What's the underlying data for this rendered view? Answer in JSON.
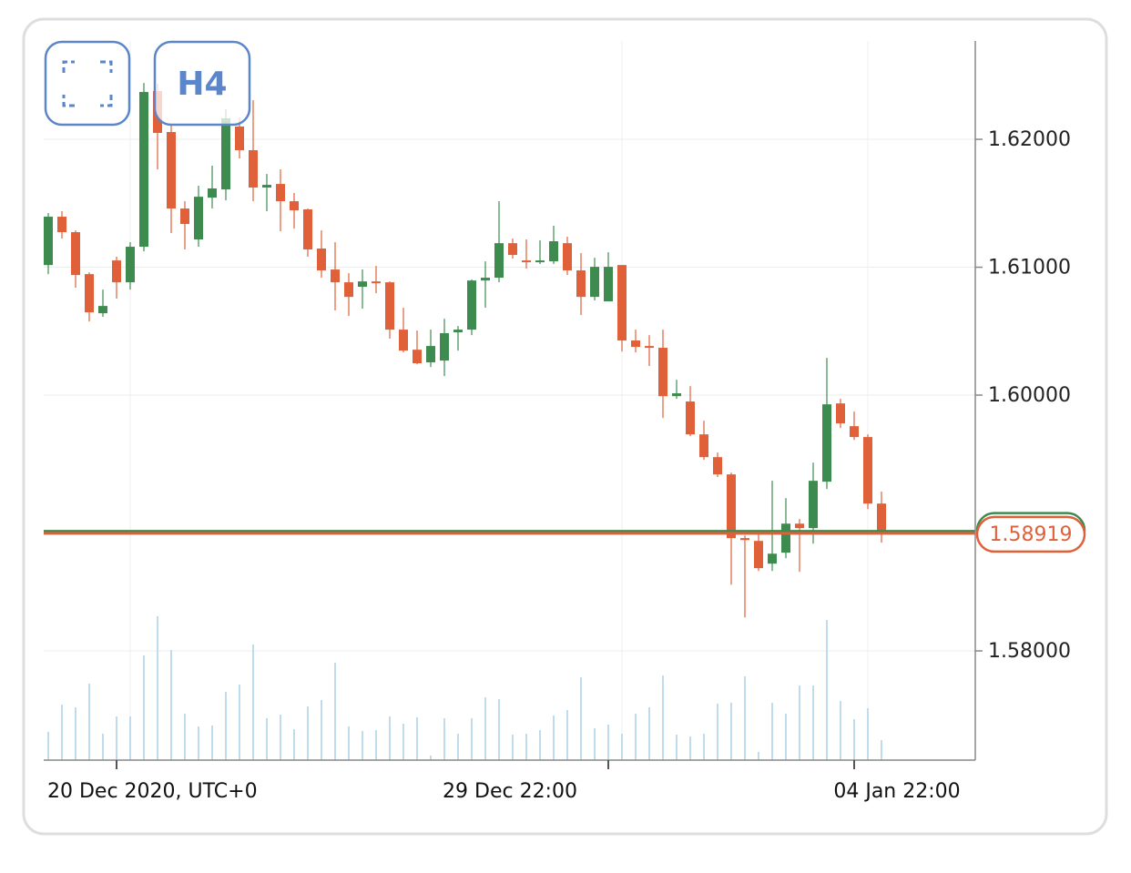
{
  "chart_data": {
    "type": "candlestick",
    "timeframe": "H4",
    "categories": [
      null,
      null,
      null,
      null,
      null,
      "20 Dec 2020, UTC+0",
      null,
      null,
      null,
      null,
      null,
      null,
      null,
      null,
      null,
      null,
      null,
      null,
      null,
      null,
      null,
      null,
      null,
      null,
      null,
      null,
      null,
      null,
      null,
      null,
      null,
      null,
      null,
      null,
      null,
      null,
      null,
      null,
      null,
      null,
      null,
      "29 Dec 22:00",
      null,
      null,
      null,
      null,
      null,
      null,
      null,
      null,
      null,
      null,
      null,
      null,
      null,
      null,
      null,
      null,
      null,
      "04 Jan 22:00",
      null,
      null
    ],
    "open": [
      1.61017,
      1.61395,
      1.61274,
      1.60946,
      1.6064,
      1.61053,
      1.60882,
      1.6116,
      1.62377,
      1.62057,
      1.61459,
      1.61217,
      1.61544,
      1.61608,
      1.621,
      1.61915,
      1.61623,
      1.61651,
      1.61516,
      1.61452,
      1.61146,
      1.60982,
      1.60882,
      1.60847,
      1.60889,
      1.60882,
      1.60512,
      1.60355,
      1.60256,
      1.6027,
      1.60491,
      1.60512,
      1.60896,
      1.60918,
      1.61188,
      1.61053,
      1.61039,
      1.61046,
      1.61188,
      1.60975,
      1.60768,
      1.60733,
      1.61017,
      1.60427,
      1.60384,
      1.6037,
      1.59992,
      1.5995,
      1.59693,
      1.59515,
      1.5938,
      1.58882,
      1.5886,
      1.58682,
      1.58768,
      1.58995,
      1.5896,
      1.59323,
      1.59935,
      1.59757,
      1.59672,
      1.59152
    ],
    "high": [
      1.61423,
      1.61438,
      1.61288,
      1.6096,
      1.60825,
      1.61082,
      1.61196,
      1.62441,
      1.62434,
      1.62114,
      1.61516,
      1.61637,
      1.61794,
      1.62235,
      1.62171,
      1.62306,
      1.61729,
      1.61765,
      1.6158,
      1.61459,
      1.61288,
      1.61196,
      1.60953,
      1.60982,
      1.6101,
      1.60889,
      1.60683,
      1.60505,
      1.60512,
      1.60597,
      1.6054,
      1.60904,
      1.61046,
      1.61516,
      1.61224,
      1.61217,
      1.6121,
      1.61324,
      1.61238,
      1.6111,
      1.61074,
      1.61117,
      1.61017,
      1.60512,
      1.60469,
      1.60512,
      1.6012,
      1.6007,
      1.598,
      1.59551,
      1.59394,
      1.58903,
      1.58917,
      1.5933,
      1.59195,
      1.59031,
      1.59472,
      1.60291,
      1.59971,
      1.59871,
      1.59693,
      1.59245
    ],
    "low": [
      1.60946,
      1.61224,
      1.6084,
      1.60576,
      1.60612,
      1.60754,
      1.60825,
      1.61124,
      1.61765,
      1.61267,
      1.61139,
      1.6116,
      1.61459,
      1.61523,
      1.6185,
      1.61516,
      1.61438,
      1.61281,
      1.61302,
      1.61082,
      1.60918,
      1.60662,
      1.60619,
      1.60676,
      1.60797,
      1.60441,
      1.60334,
      1.60241,
      1.6022,
      1.60149,
      1.60348,
      1.60469,
      1.60683,
      1.60882,
      1.61067,
      1.60989,
      1.61025,
      1.61025,
      1.60939,
      1.60626,
      1.6074,
      1.60733,
      1.60341,
      1.60334,
      1.60227,
      1.59821,
      1.59971,
      1.59679,
      1.59494,
      1.59359,
      1.58518,
      1.58262,
      1.58625,
      1.58625,
      1.58725,
      1.58618,
      1.58839,
      1.59266,
      1.59743,
      1.5965,
      1.59109,
      1.58846
    ],
    "close": [
      1.61395,
      1.61274,
      1.60939,
      1.60647,
      1.60697,
      1.60882,
      1.6116,
      1.6237,
      1.6205,
      1.61459,
      1.61338,
      1.61551,
      1.61616,
      1.62164,
      1.61915,
      1.61623,
      1.61644,
      1.61516,
      1.61445,
      1.61139,
      1.60975,
      1.60882,
      1.60768,
      1.60889,
      1.60875,
      1.60512,
      1.60348,
      1.60249,
      1.60384,
      1.60484,
      1.60512,
      1.60896,
      1.60918,
      1.61188,
      1.61096,
      1.61039,
      1.61053,
      1.61203,
      1.60975,
      1.60768,
      1.61003,
      1.61003,
      1.60427,
      1.60377,
      1.6037,
      1.59992,
      1.60014,
      1.59693,
      1.59515,
      1.5938,
      1.58882,
      1.58867,
      1.58647,
      1.5876,
      1.58995,
      1.5896,
      1.5933,
      1.59928,
      1.59779,
      1.59672,
      1.59152,
      1.58919
    ],
    "volume": [
      31,
      61,
      58,
      84,
      29,
      48,
      48,
      115,
      158,
      121,
      51,
      37,
      38,
      75,
      83,
      127,
      46,
      50,
      34,
      59,
      66,
      107,
      37,
      32,
      33,
      48,
      40,
      47,
      5,
      46,
      29,
      46,
      69,
      67,
      28,
      29,
      33,
      49,
      55,
      91,
      35,
      39,
      29,
      51,
      58,
      93,
      28,
      26,
      29,
      62,
      63,
      92,
      9,
      63,
      51,
      82,
      82,
      154,
      65,
      45,
      57,
      22
    ],
    "up_color": "#3d8b4f",
    "down_color": "#e0603a",
    "volume_color": "#bfdced",
    "ylim": [
      1.57146,
      1.62769
    ],
    "yticks": [
      {
        "value": 1.58,
        "label": "1.58000"
      },
      {
        "value": 1.6,
        "label": "1.60000"
      },
      {
        "value": 1.61,
        "label": "1.61000"
      },
      {
        "value": 1.62,
        "label": "1.62000"
      }
    ],
    "grid": true,
    "ask_price": 1.58935,
    "ask_color": "#3d8b4f",
    "current_price": 1.58919,
    "current_price_color": "#e0603a"
  }
}
